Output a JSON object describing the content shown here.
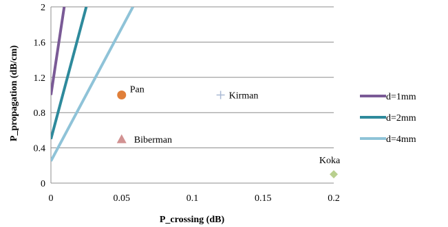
{
  "chart_data": {
    "type": "scatter",
    "xlabel": "P_crossing (dB)",
    "ylabel": "P_propagation (dB/cm)",
    "xlim": [
      0,
      0.2
    ],
    "ylim": [
      0,
      2
    ],
    "x_ticks": [
      "0",
      "0.05",
      "0.1",
      "0.15",
      "0.2"
    ],
    "y_ticks": [
      "0",
      "0.4",
      "0.8",
      "1.2",
      "1.6",
      "2"
    ],
    "grid": "horizontal",
    "legend": "right",
    "lines": [
      {
        "name": "d=1mm",
        "color": "#7a5a96",
        "x": [
          0,
          0.0094
        ],
        "y": [
          1.0,
          2.0
        ]
      },
      {
        "name": "d=2mm",
        "color": "#2e8a9c",
        "x": [
          0,
          0.025
        ],
        "y": [
          0.5,
          2.0
        ]
      },
      {
        "name": "d=4mm",
        "color": "#8fc3d8",
        "x": [
          0,
          0.058
        ],
        "y": [
          0.25,
          2.0
        ]
      }
    ],
    "points": [
      {
        "label": "Pan",
        "x": 0.05,
        "y": 1.0,
        "marker": "circle",
        "color": "#e07f3a"
      },
      {
        "label": "Kirman",
        "x": 0.12,
        "y": 1.0,
        "marker": "plus",
        "color": "#a9b9d4"
      },
      {
        "label": "Biberman",
        "x": 0.05,
        "y": 0.5,
        "marker": "triangle",
        "color": "#d29292"
      },
      {
        "label": "Koka",
        "x": 0.2,
        "y": 0.1,
        "marker": "diamond",
        "color": "#b9d08e"
      }
    ]
  }
}
